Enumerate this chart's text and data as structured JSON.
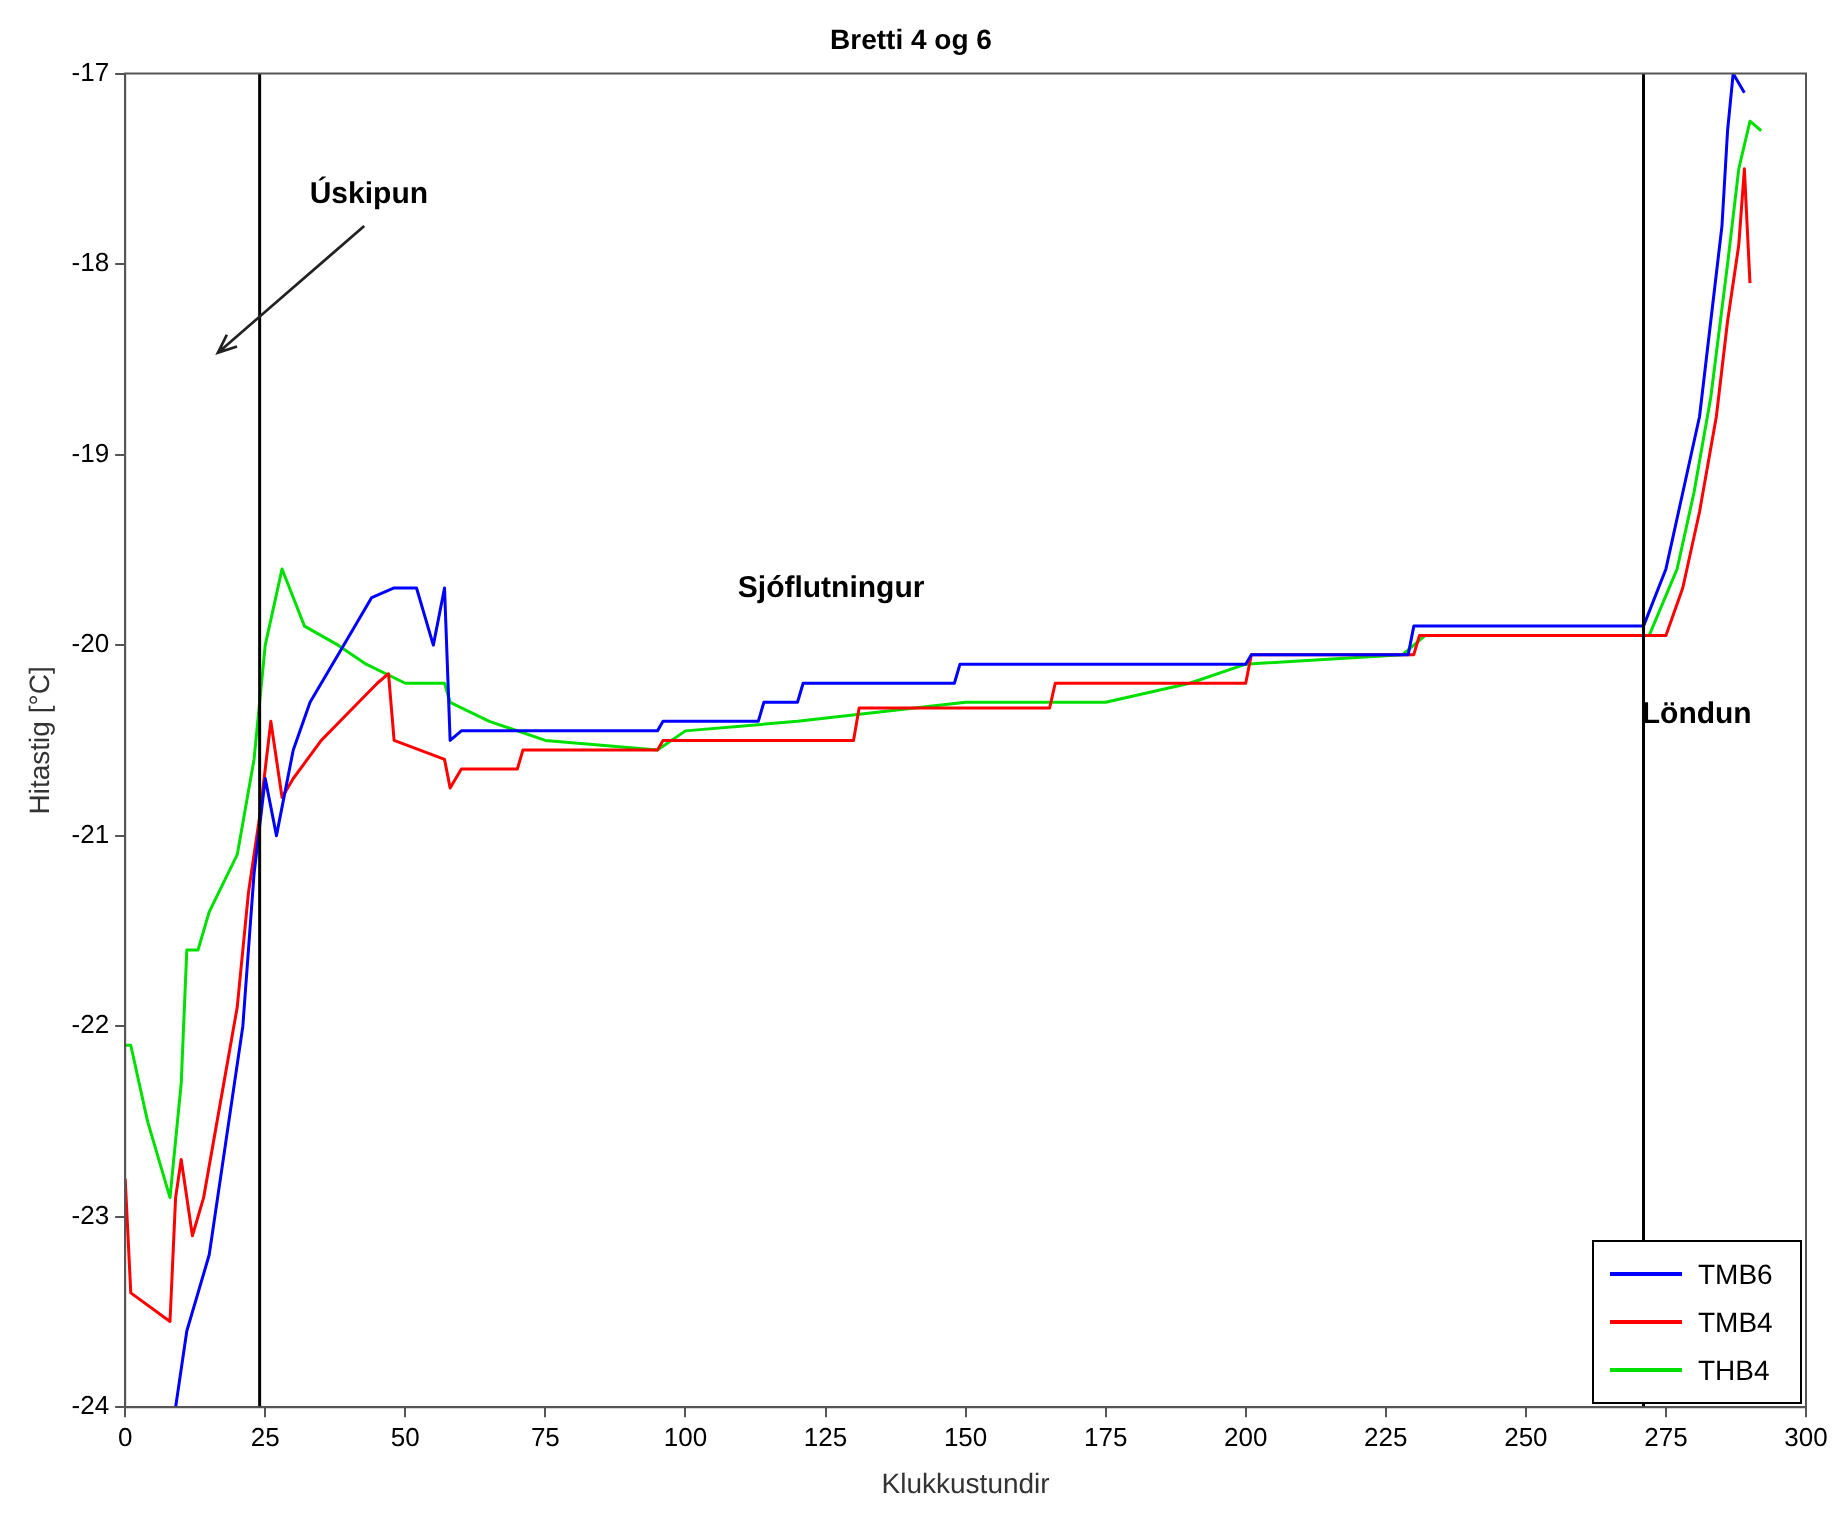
{
  "chart_data": {
    "type": "line",
    "title": "Bretti 4 og 6",
    "xlabel": "Klukkustundir",
    "ylabel": "Hitastig [°C]",
    "xlim": [
      0,
      300
    ],
    "xticks": [
      0,
      25,
      50,
      75,
      100,
      125,
      150,
      175,
      200,
      225,
      250,
      275,
      300
    ],
    "ylim": [
      -24,
      -17
    ],
    "yticks": [
      -24,
      -23,
      -22,
      -21,
      -20,
      -19,
      -18,
      -17
    ],
    "grid": false,
    "legend": "bottom right",
    "line_style": "solid",
    "marker": "none",
    "ref_lines": [
      {
        "axis": "x",
        "value": 24,
        "color": "#000000"
      },
      {
        "axis": "x",
        "value": 271,
        "color": "#000000"
      }
    ],
    "annotations": [
      "Úskipun",
      "Sjóflutningur",
      "Löndun"
    ],
    "series": [
      {
        "name": "TMB6",
        "color": "#0000ff",
        "x": [
          9,
          11,
          15,
          21,
          23,
          25,
          27,
          30,
          33,
          39,
          44,
          48,
          52,
          55,
          57,
          58,
          60,
          95,
          96,
          113,
          114,
          120,
          121,
          148,
          149,
          200,
          201,
          229,
          230,
          271,
          275,
          278,
          281,
          283,
          285,
          286,
          287,
          289
        ],
        "values": [
          -24,
          -23.6,
          -23.2,
          -22,
          -21.2,
          -20.7,
          -21,
          -20.55,
          -20.3,
          -20,
          -19.75,
          -19.7,
          -19.7,
          -20,
          -19.7,
          -20.5,
          -20.45,
          -20.45,
          -20.4,
          -20.4,
          -20.3,
          -20.3,
          -20.2,
          -20.2,
          -20.1,
          -20.1,
          -20.05,
          -20.05,
          -19.9,
          -19.9,
          -19.6,
          -19.2,
          -18.8,
          -18.3,
          -17.8,
          -17.3,
          -17,
          -17.1
        ]
      },
      {
        "name": "TMB4",
        "color": "#ff0000",
        "x": [
          0,
          1,
          8,
          9,
          10,
          12,
          14,
          17,
          20,
          22,
          24,
          26,
          28,
          30,
          35,
          40,
          45,
          47,
          48,
          57,
          58,
          60,
          70,
          71,
          95,
          96,
          130,
          131,
          165,
          166,
          200,
          201,
          230,
          231,
          275,
          278,
          281,
          284,
          286,
          288,
          289,
          290
        ],
        "values": [
          -22.8,
          -23.4,
          -23.55,
          -22.9,
          -22.7,
          -23.1,
          -22.9,
          -22.4,
          -21.9,
          -21.3,
          -20.9,
          -20.4,
          -20.8,
          -20.7,
          -20.5,
          -20.35,
          -20.2,
          -20.15,
          -20.5,
          -20.6,
          -20.75,
          -20.65,
          -20.65,
          -20.55,
          -20.55,
          -20.5,
          -20.5,
          -20.33,
          -20.33,
          -20.2,
          -20.2,
          -20.05,
          -20.05,
          -19.95,
          -19.95,
          -19.7,
          -19.3,
          -18.8,
          -18.3,
          -17.9,
          -17.5,
          -18.1
        ]
      },
      {
        "name": "THB4",
        "color": "#00e000",
        "x": [
          0,
          1,
          4,
          8,
          10,
          11,
          13,
          15,
          20,
          23,
          25,
          28,
          32,
          38,
          43,
          50,
          57,
          58,
          65,
          75,
          95,
          100,
          120,
          150,
          175,
          190,
          200,
          228,
          232,
          272,
          277,
          280,
          283,
          286,
          288,
          290,
          292
        ],
        "values": [
          -22.1,
          -22.1,
          -22.5,
          -22.9,
          -22.3,
          -21.6,
          -21.6,
          -21.4,
          -21.1,
          -20.6,
          -20,
          -19.6,
          -19.9,
          -20,
          -20.1,
          -20.2,
          -20.2,
          -20.3,
          -20.4,
          -20.5,
          -20.55,
          -20.45,
          -20.4,
          -20.3,
          -20.3,
          -20.2,
          -20.1,
          -20.05,
          -19.95,
          -19.95,
          -19.6,
          -19.2,
          -18.7,
          -18,
          -17.5,
          -17.25,
          -17.3
        ]
      }
    ]
  }
}
